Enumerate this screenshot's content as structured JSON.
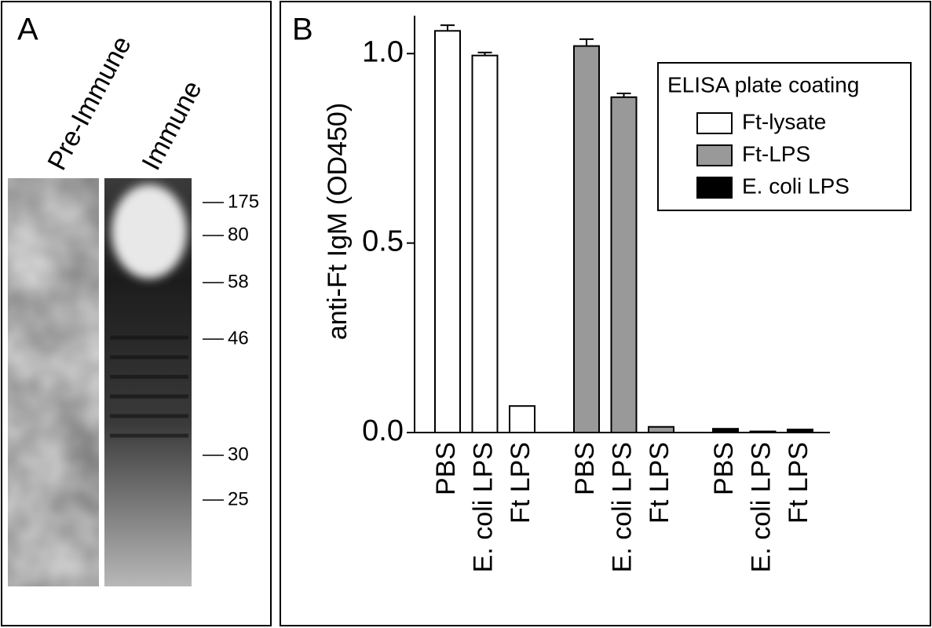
{
  "panel_a": {
    "label": "A",
    "lanes": [
      "Pre-Immune",
      "Immune"
    ],
    "markers": [
      175,
      80,
      58,
      46,
      30,
      25
    ]
  },
  "chart_data": {
    "type": "bar",
    "panel_label": "B",
    "ylabel": "anti-Ft IgM (OD450)",
    "categories": [
      "PBS",
      "E. coli LPS",
      "Ft LPS",
      "PBS",
      "E. coli LPS",
      "Ft LPS",
      "PBS",
      "E. coli LPS",
      "Ft LPS"
    ],
    "series": [
      {
        "name": "Ft-lysate",
        "color": "#ffffff",
        "values": [
          1.06,
          0.995,
          0.07,
          null,
          null,
          null,
          null,
          null,
          null
        ],
        "errors": [
          0.015,
          0.008,
          null,
          null,
          null,
          null,
          null,
          null,
          null
        ]
      },
      {
        "name": "Ft-LPS",
        "color": "#999999",
        "values": [
          null,
          null,
          null,
          1.02,
          0.885,
          0.015,
          null,
          null,
          null
        ],
        "errors": [
          null,
          null,
          null,
          0.018,
          0.01,
          null,
          null,
          null,
          null
        ]
      },
      {
        "name": "E. coli LPS",
        "color": "#000000",
        "values": [
          null,
          null,
          null,
          null,
          null,
          null,
          0.01,
          0.003,
          0.008
        ],
        "errors": [
          null,
          null,
          null,
          null,
          null,
          null,
          null,
          null,
          null
        ]
      }
    ],
    "ylim": [
      0,
      1.1
    ],
    "yticks": [
      {
        "value": 0,
        "label": "0.0"
      },
      {
        "value": 0.5,
        "label": "0.5"
      },
      {
        "value": 1,
        "label": "1.0"
      }
    ],
    "legend_title": "ELISA plate coating",
    "legend": "upper right"
  }
}
